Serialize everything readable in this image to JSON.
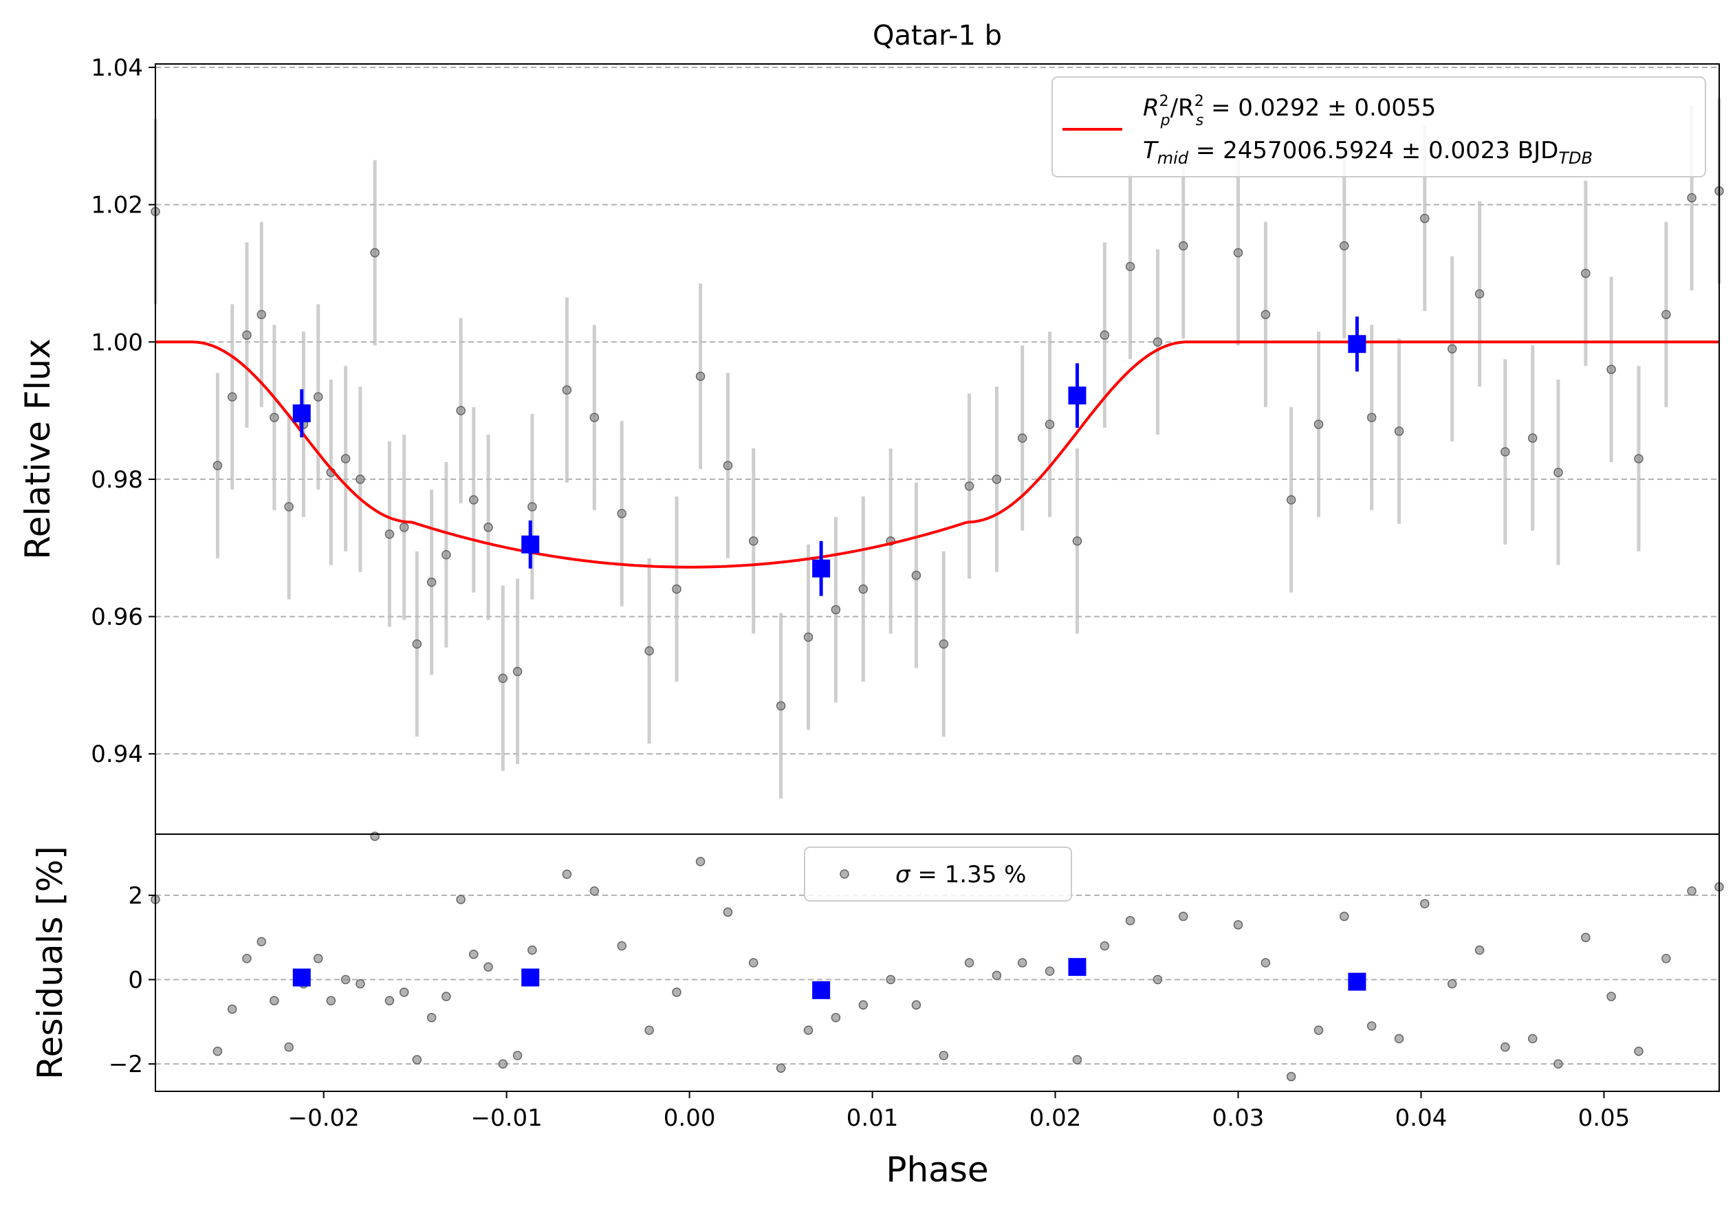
{
  "chart_data": [
    {
      "type": "scatter",
      "title": "Qatar-1 b",
      "xlabel": "",
      "ylabel": "Relative Flux",
      "xlim": [
        -0.0292,
        0.0563
      ],
      "ylim": [
        0.9283,
        1.0405
      ],
      "grid": "y-dashed",
      "xtick_labels": [
        "−0.02",
        "−0.01",
        "0.00",
        "0.01",
        "0.02",
        "0.03",
        "0.04",
        "0.05"
      ],
      "ytick_labels": [
        "0.94",
        "0.96",
        "0.98",
        "1.00",
        "1.02",
        "1.04"
      ],
      "yticks": [
        0.94,
        0.96,
        0.98,
        1.0,
        1.02,
        1.04
      ],
      "legend": {
        "placement": "top-right",
        "line1": "R²ₚ/R²ₛ = 0.0292 ± 0.0055",
        "line1_parts": {
          "a": "R",
          "a_sup": "2",
          "a_sub": "p",
          "b": "/R",
          "b_sup": "2",
          "b_sub": "s",
          "rest": " = 0.0292 ± 0.0055"
        },
        "line2": "T_mid = 2457006.5924 ± 0.0023 BJD_TDB",
        "line2_parts": {
          "a": "T",
          "a_sub": "mid",
          "rest": " = 2457006.5924 ± 0.0023 BJD",
          "unit_sub": "TDB"
        }
      },
      "model": {
        "color": "#ff0000",
        "depth": 0.0328,
        "t1": -0.0272,
        "t2": -0.0152,
        "t3": 0.0152,
        "t4": 0.0272
      },
      "raw": {
        "color": "#808080",
        "x": [
          -0.0292,
          -0.0258,
          -0.025,
          -0.0242,
          -0.0234,
          -0.0227,
          -0.0219,
          -0.0211,
          -0.0203,
          -0.0196,
          -0.0188,
          -0.018,
          -0.0172,
          -0.0164,
          -0.0156,
          -0.0149,
          -0.0141,
          -0.0133,
          -0.0125,
          -0.0118,
          -0.011,
          -0.0102,
          -0.0094,
          -0.0086,
          -0.0067,
          -0.0052,
          -0.0037,
          -0.0022,
          -0.0007,
          0.0006,
          0.0021,
          0.0035,
          0.005,
          0.0065,
          0.008,
          0.0095,
          0.011,
          0.0124,
          0.0139,
          0.0153,
          0.0168,
          0.0182,
          0.0197,
          0.0212,
          0.0227,
          0.0241,
          0.0256,
          0.027,
          0.03,
          0.0315,
          0.0329,
          0.0344,
          0.0358,
          0.0373,
          0.0388,
          0.0402,
          0.0417,
          0.0432,
          0.0446,
          0.0461,
          0.0475,
          0.049,
          0.0504,
          0.0519,
          0.0534,
          0.0548,
          0.0563
        ],
        "y": [
          1.019,
          0.982,
          0.992,
          1.001,
          1.004,
          0.989,
          0.976,
          0.988,
          0.992,
          0.981,
          0.983,
          0.98,
          1.013,
          0.972,
          0.973,
          0.956,
          0.965,
          0.969,
          0.99,
          0.977,
          0.973,
          0.951,
          0.952,
          0.976,
          0.993,
          0.989,
          0.975,
          0.955,
          0.964,
          0.995,
          0.982,
          0.971,
          0.947,
          0.957,
          0.961,
          0.964,
          0.971,
          0.966,
          0.956,
          0.979,
          0.98,
          0.986,
          0.988,
          0.971,
          1.001,
          1.011,
          1.0,
          1.014,
          1.013,
          1.004,
          0.977,
          0.988,
          1.014,
          0.989,
          0.987,
          1.018,
          0.999,
          1.007,
          0.984,
          0.986,
          0.981,
          1.01,
          0.996,
          0.983,
          1.004,
          1.021,
          1.022
        ],
        "yerr": 0.0135
      },
      "binned": {
        "color": "#0000ff",
        "x": [
          -0.0212,
          -0.0087,
          0.0072,
          0.0212,
          0.0365
        ],
        "y": [
          0.9896,
          0.9705,
          0.967,
          0.9922,
          0.9997
        ],
        "yerr": [
          0.0035,
          0.0035,
          0.004,
          0.0047,
          0.004
        ]
      }
    },
    {
      "type": "scatter",
      "title": "",
      "xlabel": "Phase",
      "ylabel": "Residuals [%]",
      "xlim": [
        -0.0292,
        0.0563
      ],
      "ylim": [
        -2.65,
        3.45
      ],
      "grid": "y-dashed",
      "xtick_labels": [
        "−0.02",
        "−0.01",
        "0.00",
        "0.01",
        "0.02",
        "0.03",
        "0.04",
        "0.05"
      ],
      "xticks": [
        -0.02,
        -0.01,
        0.0,
        0.01,
        0.02,
        0.03,
        0.04,
        0.05
      ],
      "ytick_labels": [
        "−2",
        "0",
        "2"
      ],
      "yticks": [
        -2,
        0,
        2
      ],
      "legend": {
        "placement": "top-center",
        "label": "σ = 1.35 %",
        "label_parts": {
          "sym": "σ",
          "rest": " = 1.35 %"
        }
      },
      "raw": {
        "color": "#808080",
        "y": [
          1.9,
          -1.7,
          -0.7,
          0.5,
          0.9,
          -0.5,
          -1.6,
          -0.1,
          0.5,
          -0.5,
          0.0,
          -0.1,
          3.4,
          -0.5,
          -0.3,
          -1.9,
          -0.9,
          -0.4,
          1.9,
          0.6,
          0.3,
          -2.0,
          -1.8,
          0.7,
          2.5,
          2.1,
          0.8,
          -1.2,
          -0.3,
          2.8,
          1.6,
          0.4,
          -2.1,
          -1.2,
          -0.9,
          -0.6,
          0.0,
          -0.6,
          -1.8,
          0.4,
          0.1,
          0.4,
          0.2,
          -1.9,
          0.8,
          1.4,
          0.0,
          1.5,
          1.3,
          0.4,
          -2.3,
          -1.2,
          1.5,
          -1.1,
          -1.4,
          1.8,
          -0.1,
          0.7,
          -1.6,
          -1.4,
          -2.0,
          1.0,
          -0.4,
          -1.7,
          0.5,
          2.1,
          2.2
        ]
      },
      "binned": {
        "color": "#0000ff",
        "y": [
          0.05,
          0.05,
          -0.25,
          0.3,
          -0.05
        ]
      }
    }
  ]
}
